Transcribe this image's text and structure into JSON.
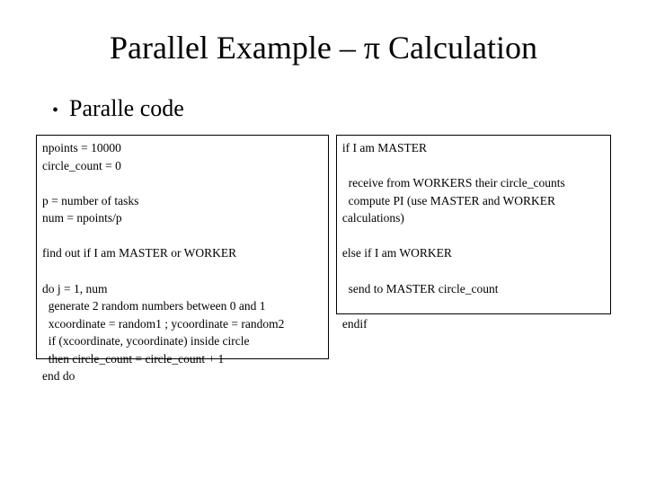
{
  "title": "Parallel Example – π Calculation",
  "bullet": "Paralle code",
  "codeLeft": "npoints = 10000\ncircle_count = 0\n\np = number of tasks\nnum = npoints/p\n\nfind out if I am MASTER or WORKER\n\ndo j = 1, num\n  generate 2 random numbers between 0 and 1\n  xcoordinate = random1 ; ycoordinate = random2\n  if (xcoordinate, ycoordinate) inside circle\n  then circle_count = circle_count + 1\nend do",
  "codeRight": "if I am MASTER\n\n  receive from WORKERS their circle_counts\n  compute PI (use MASTER and WORKER\ncalculations)\n\nelse if I am WORKER\n\n  send to MASTER circle_count\n\nendif"
}
